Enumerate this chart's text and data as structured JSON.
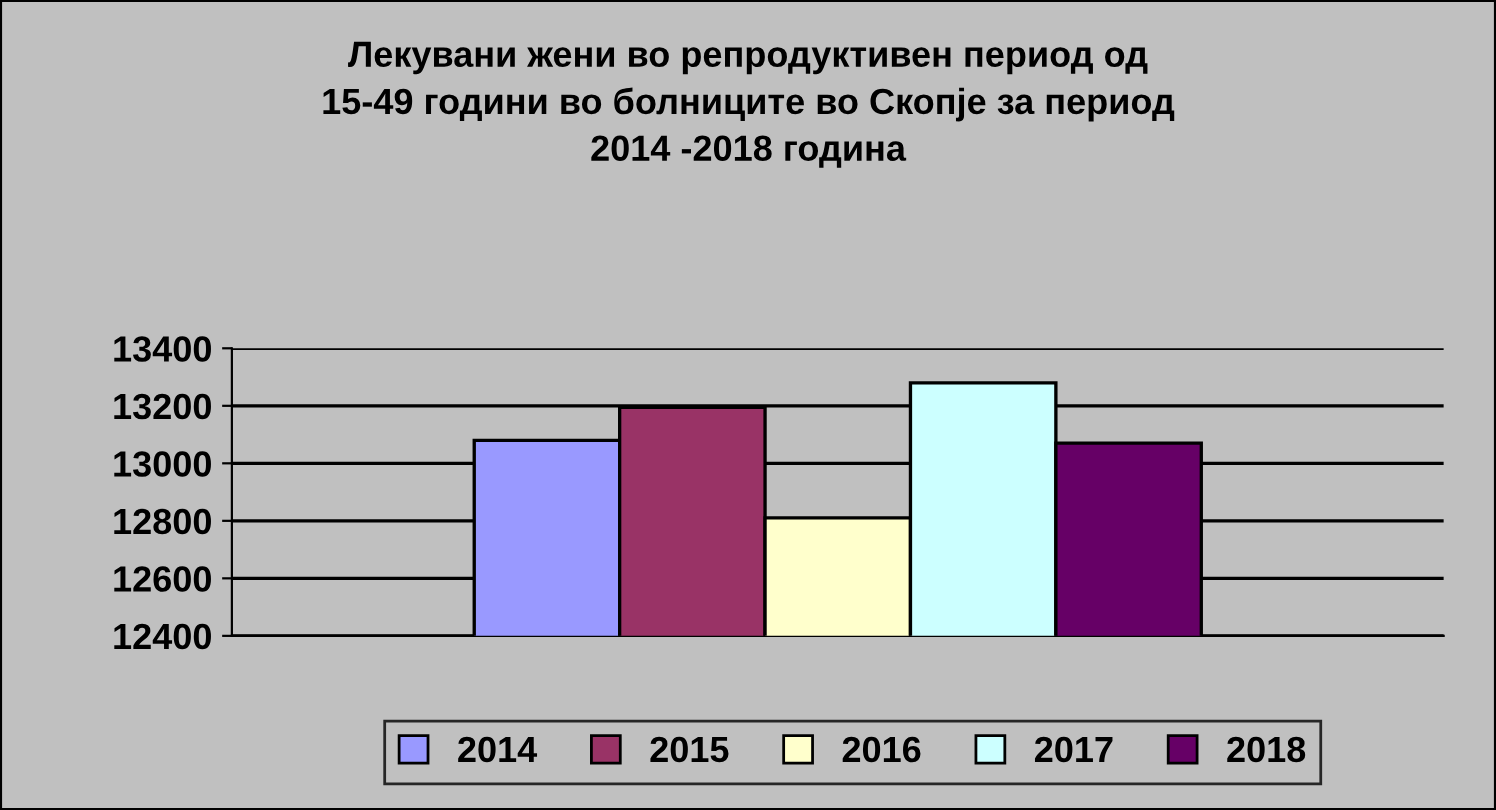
{
  "chart_data": {
    "type": "bar",
    "title": "Лекувани жени во репродуктивен период од\n15-49 години во болниците во Скопје за период\n2014 -2018 година",
    "categories": [
      null
    ],
    "series": [
      {
        "name": "2014",
        "color": "#9999ff",
        "values": [
          13080
        ]
      },
      {
        "name": "2015",
        "color": "#993366",
        "values": [
          13195
        ]
      },
      {
        "name": "2016",
        "color": "#ffffcc",
        "values": [
          12810
        ]
      },
      {
        "name": "2017",
        "color": "#ccffff",
        "values": [
          13280
        ]
      },
      {
        "name": "2018",
        "color": "#660066",
        "values": [
          13070
        ]
      }
    ],
    "ylim": [
      12400,
      13400
    ],
    "yticks": [
      12400,
      12600,
      12800,
      13000,
      13200,
      13400
    ],
    "grid": "y",
    "legend": "bottom"
  }
}
